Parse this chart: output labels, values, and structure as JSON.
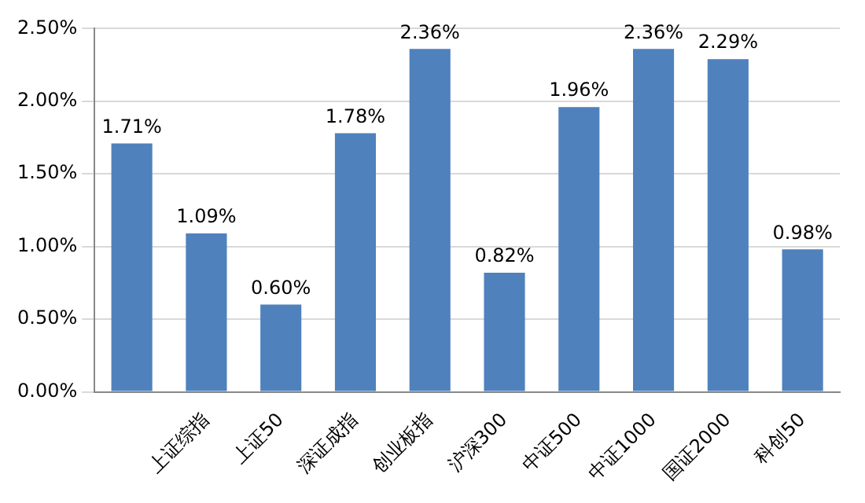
{
  "chart_data": {
    "type": "bar",
    "categories": [
      null,
      "上证综指",
      "上证50",
      "深证成指",
      "创业板指",
      "沪深300",
      "中证500",
      "中证1000",
      "国证2000",
      "科创50"
    ],
    "values": [
      1.71,
      1.09,
      0.6,
      1.78,
      2.36,
      0.82,
      1.96,
      2.36,
      2.29,
      0.98
    ],
    "value_labels": [
      "1.71%",
      "1.09%",
      "0.60%",
      "1.78%",
      "2.36%",
      "0.82%",
      "1.96%",
      "2.36%",
      "2.29%",
      "0.98%"
    ],
    "color": "#4f81bd",
    "ylim": [
      0,
      2.5
    ],
    "yticks": [
      {
        "value": 0,
        "label": "0.00%"
      },
      {
        "value": 0.5,
        "label": "0.50%"
      },
      {
        "value": 1,
        "label": "1.00%"
      },
      {
        "value": 1.5,
        "label": "1.50%"
      },
      {
        "value": 2,
        "label": "2.00%"
      },
      {
        "value": 2.5,
        "label": "2.50%"
      }
    ],
    "grid": "y",
    "legend": false
  }
}
